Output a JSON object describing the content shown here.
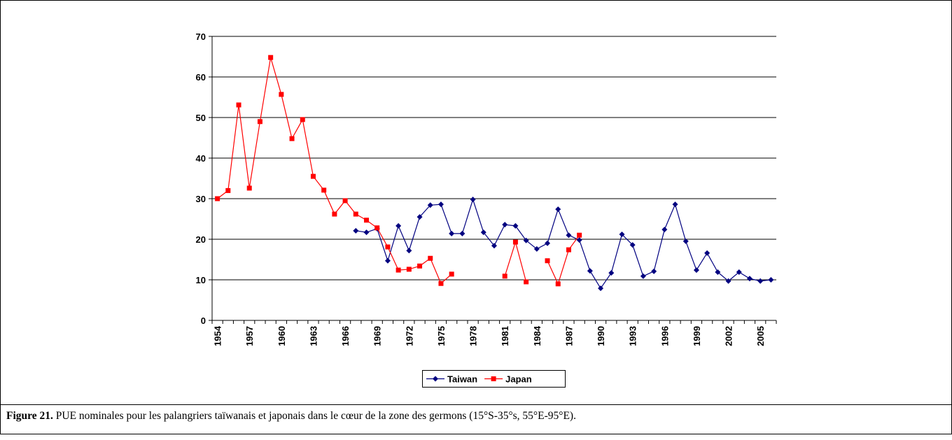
{
  "chart_data": {
    "type": "line",
    "categories": [
      1954,
      null,
      null,
      1957,
      null,
      null,
      1960,
      null,
      null,
      1963,
      null,
      null,
      1966,
      null,
      null,
      1969,
      null,
      null,
      1972,
      null,
      null,
      1975,
      null,
      null,
      1978,
      null,
      null,
      1981,
      null,
      null,
      1984,
      null,
      null,
      1987,
      null,
      null,
      1990,
      null,
      null,
      1993,
      null,
      null,
      1996,
      null,
      null,
      1999,
      null,
      null,
      2002,
      null,
      null,
      2005,
      null
    ],
    "series": [
      {
        "name": "Taiwan",
        "color": "#000080",
        "marker": "diamond",
        "values": [
          null,
          null,
          null,
          null,
          null,
          null,
          null,
          null,
          null,
          null,
          null,
          null,
          null,
          22.1,
          21.7,
          22.6,
          14.7,
          23.3,
          17.2,
          25.5,
          28.4,
          28.6,
          21.4,
          21.4,
          29.8,
          21.7,
          18.4,
          23.6,
          23.3,
          19.7,
          17.6,
          19.0,
          27.4,
          21.0,
          19.8,
          12.2,
          7.9,
          11.7,
          21.2,
          18.6,
          10.9,
          12.1,
          22.4,
          28.6,
          19.5,
          12.4,
          16.6,
          11.9,
          9.7,
          11.9,
          10.3,
          9.7,
          10.0
        ]
      },
      {
        "name": "Japan",
        "color": "#ff0000",
        "marker": "square",
        "values": [
          30.0,
          32.0,
          53.1,
          32.6,
          49.0,
          64.8,
          55.7,
          44.8,
          49.5,
          35.5,
          32.1,
          26.2,
          29.5,
          26.2,
          24.7,
          22.8,
          18.1,
          12.4,
          12.6,
          13.4,
          15.3,
          9.1,
          11.4,
          null,
          null,
          null,
          null,
          10.9,
          19.3,
          9.5,
          null,
          14.7,
          9.0,
          17.4,
          21.0,
          null,
          null,
          null,
          null,
          null,
          null,
          null,
          null,
          null,
          null,
          null,
          null,
          null,
          null,
          null,
          null,
          null,
          null
        ]
      }
    ],
    "ylim": [
      0,
      70
    ],
    "yticks": [
      0,
      10,
      20,
      30,
      40,
      50,
      60,
      70
    ],
    "grid": true,
    "legend": "bottom"
  },
  "caption": {
    "label": "Figure 21.",
    "text": "PUE nominales pour les palangriers taïwanais et japonais dans le cœur de la zone des germons (15°S-35°s, 55°E-95°E)."
  }
}
